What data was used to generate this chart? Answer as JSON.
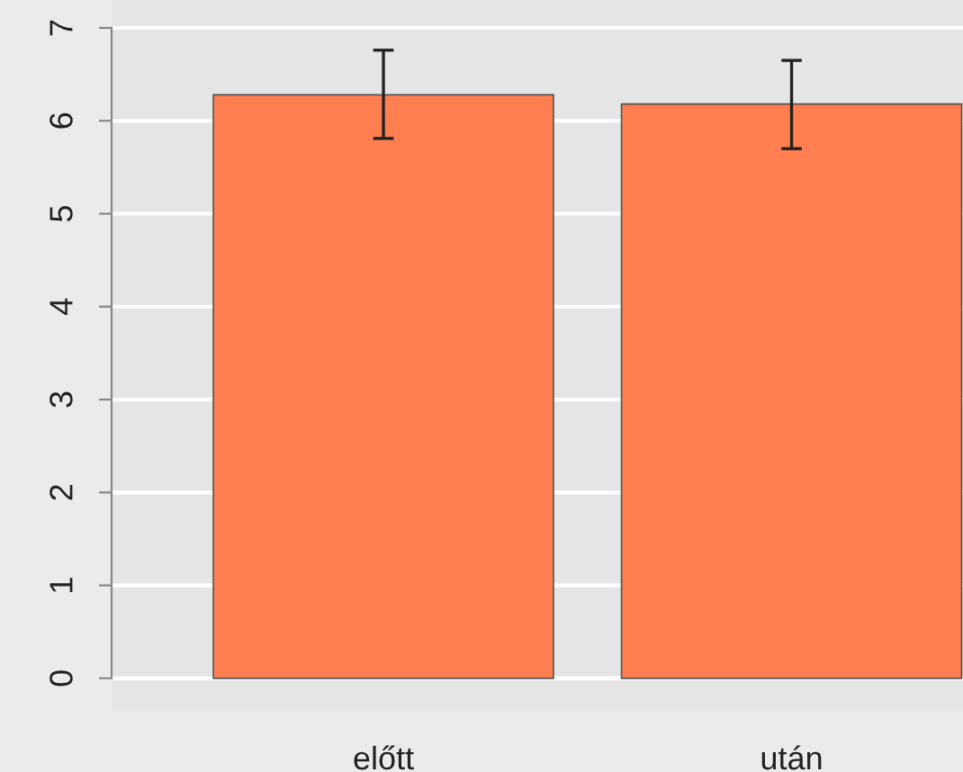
{
  "chart_data": {
    "type": "bar",
    "categories": [
      "előtt",
      "után"
    ],
    "values": [
      6.28,
      6.18
    ],
    "errors": [
      [
        5.81,
        6.76
      ],
      [
        5.7,
        6.65
      ]
    ],
    "color": "#ff7f50",
    "ylim": [
      -0.35,
      7.3
    ],
    "yticks": [
      0,
      1,
      2,
      3,
      4,
      5,
      6,
      7
    ],
    "grid": "y"
  }
}
